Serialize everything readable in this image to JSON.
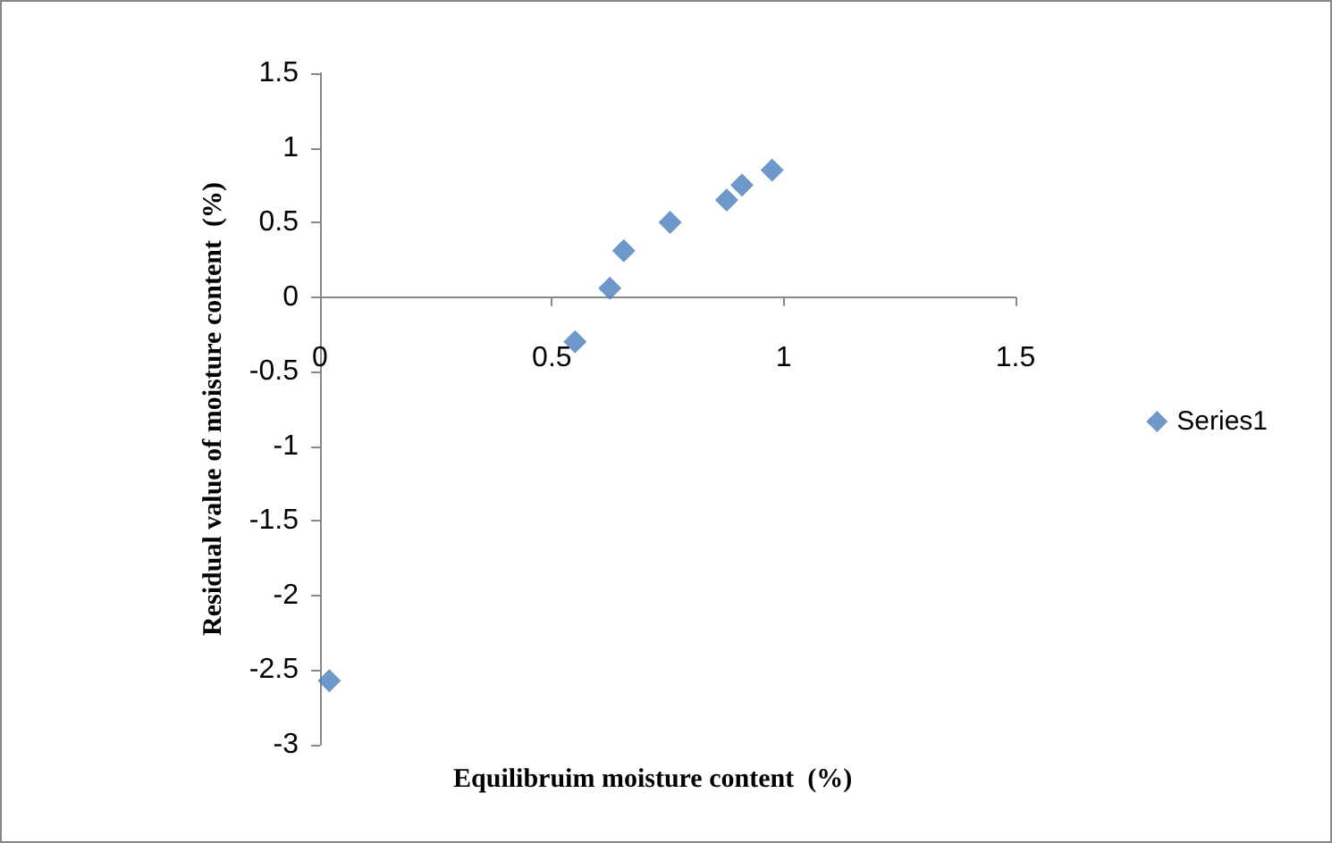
{
  "chart_data": {
    "type": "scatter",
    "xlabel": "Equilibruim moisture content  (%)",
    "ylabel": "Residual value of moisture content  (%)",
    "x": [
      0.02,
      0.55,
      0.625,
      0.655,
      0.755,
      0.877,
      0.91,
      0.975
    ],
    "series": [
      {
        "name": "Series1",
        "color": "#4a7ebb",
        "values": [
          -2.57,
          -0.3,
          0.06,
          0.31,
          0.5,
          0.65,
          0.75,
          0.85
        ]
      }
    ],
    "xlim": [
      0,
      1.5
    ],
    "xticks": [
      0,
      0.5,
      1,
      1.5
    ],
    "ylim": [
      -3,
      1.5
    ],
    "yticks": [
      -3,
      -2.5,
      -2,
      -1.5,
      -1,
      -0.5,
      0,
      0.5,
      1,
      1.5
    ],
    "marker": "diamond",
    "legend": "right",
    "grid": false
  }
}
